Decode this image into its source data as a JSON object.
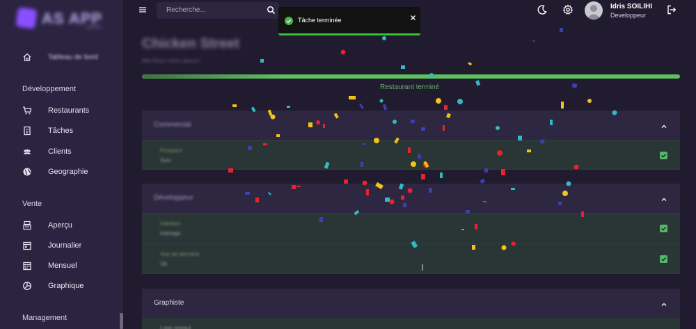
{
  "sidebar": {
    "logo": {
      "name": "AS APP",
      "sub": "admin"
    },
    "dashboard_label": "Tableau de bord",
    "sections": [
      {
        "title": "Développement",
        "items": [
          "Restaurants",
          "Tâches",
          "Clients",
          "Geographie"
        ]
      },
      {
        "title": "Vente",
        "items": [
          "Aperçu",
          "Journalier",
          "Mensuel",
          "Graphique"
        ]
      },
      {
        "title": "Management"
      }
    ]
  },
  "header": {
    "search_placeholder": "Recherche...",
    "user_name": "Idris SOILIHI",
    "user_role": "Developpeur"
  },
  "toast": {
    "message": "Tâche terminée"
  },
  "page": {
    "title": "Chicken Street",
    "subtitle": "Mkt Rous voiciv panorn",
    "progress_label": "Restaurant terminé",
    "progress_fraction": 1.0
  },
  "cards": [
    {
      "title": "Commercial",
      "rows": [
        {
          "key": "Prospect",
          "value": "Suiv"
        }
      ]
    },
    {
      "title": "Développeur",
      "rows": [
        {
          "key": "Interieur",
          "value": "Intérage"
        },
        {
          "key": "Vue de derniére",
          "value": "Ok"
        }
      ]
    },
    {
      "title": "Graphiste",
      "rows": [
        {
          "key": "Logo restaut"
        }
      ]
    }
  ],
  "colors": {
    "accent_green": "#56b768",
    "sidebar": "#2a2440",
    "background": "#201b2f",
    "card": "#2d2742"
  }
}
